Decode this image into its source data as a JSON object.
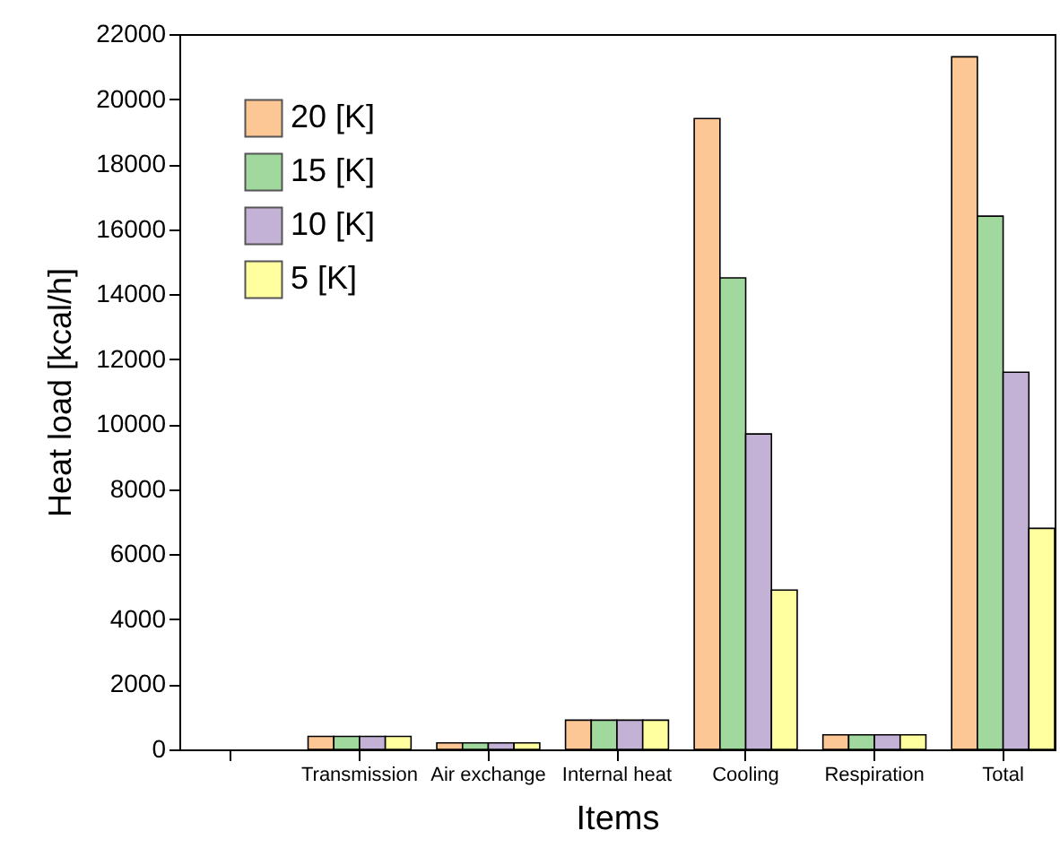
{
  "chart_data": {
    "type": "bar",
    "xlabel": "Items",
    "ylabel": "Heat load [kcal/h]",
    "categories": [
      null,
      "Transmission",
      "Air exchange",
      "Internal heat",
      "Cooling",
      "Respiration",
      "Total"
    ],
    "series": [
      {
        "name": "20 [K]",
        "color": "#fdc795",
        "values": [
          null,
          400,
          200,
          900,
          19400,
          450,
          21300
        ]
      },
      {
        "name": "15 [K]",
        "color": "#a0d89e",
        "values": [
          null,
          400,
          200,
          900,
          14500,
          450,
          16400
        ]
      },
      {
        "name": "10 [K]",
        "color": "#c3b2d6",
        "values": [
          null,
          400,
          200,
          900,
          9700,
          450,
          11600
        ]
      },
      {
        "name": "5 [K]",
        "color": "#ffff9f",
        "values": [
          null,
          400,
          200,
          900,
          4900,
          450,
          6800
        ]
      }
    ],
    "ylim": [
      0,
      22000
    ],
    "yticks": [
      0,
      2000,
      4000,
      6000,
      8000,
      10000,
      12000,
      14000,
      16000,
      18000,
      20000,
      22000
    ],
    "grid": false,
    "legend": "top left"
  }
}
